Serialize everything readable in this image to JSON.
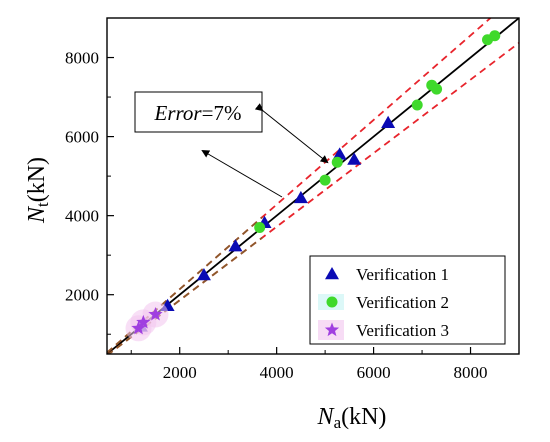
{
  "chart_data": {
    "type": "scatter",
    "xlabel": {
      "main": "N",
      "sub": "a",
      "unit": "(kN)"
    },
    "ylabel": {
      "main": "N",
      "sub": "t",
      "unit": "(kN)"
    },
    "xlim": [
      500,
      9000
    ],
    "ylim": [
      500,
      9000
    ],
    "xticks": [
      2000,
      4000,
      6000,
      8000
    ],
    "yticks": [
      2000,
      4000,
      6000,
      8000
    ],
    "grid": false,
    "legend_position": "bottom-right",
    "annotation": {
      "italic": "Error",
      "rest": "=7%"
    },
    "lines": [
      {
        "style": "solid",
        "color": "#000000",
        "slope": 1.0
      },
      {
        "style": "dashed",
        "color": "#e8242c",
        "slope": 1.07
      },
      {
        "style": "dashed",
        "color": "#e8242c",
        "slope": 0.93
      },
      {
        "style": "dashed",
        "color": "#8b5a2b",
        "slope": 1.07,
        "x_end": 3700
      },
      {
        "style": "dashed",
        "color": "#8b5a2b",
        "slope": 0.93,
        "x_end": 3700
      }
    ],
    "series": [
      {
        "name": "Verification 1",
        "marker": "triangle",
        "color": "#0a0ab4",
        "points": [
          [
            1200,
            1200
          ],
          [
            1750,
            1720
          ],
          [
            2500,
            2500
          ],
          [
            3150,
            3230
          ],
          [
            3750,
            3820
          ],
          [
            4500,
            4450
          ],
          [
            5300,
            5550
          ],
          [
            5600,
            5420
          ],
          [
            6300,
            6350
          ]
        ]
      },
      {
        "name": "Verification 2",
        "marker": "circle",
        "color": "#3fd92b",
        "points": [
          [
            3650,
            3700
          ],
          [
            5000,
            4900
          ],
          [
            5250,
            5350
          ],
          [
            6900,
            6800
          ],
          [
            7200,
            7300
          ],
          [
            7300,
            7200
          ],
          [
            8350,
            8450
          ],
          [
            8500,
            8550
          ]
        ]
      },
      {
        "name": "Verification 3",
        "marker": "star",
        "color": "#a03fe0",
        "points": [
          [
            1150,
            1150
          ],
          [
            1250,
            1300
          ],
          [
            1500,
            1500
          ]
        ]
      }
    ]
  }
}
